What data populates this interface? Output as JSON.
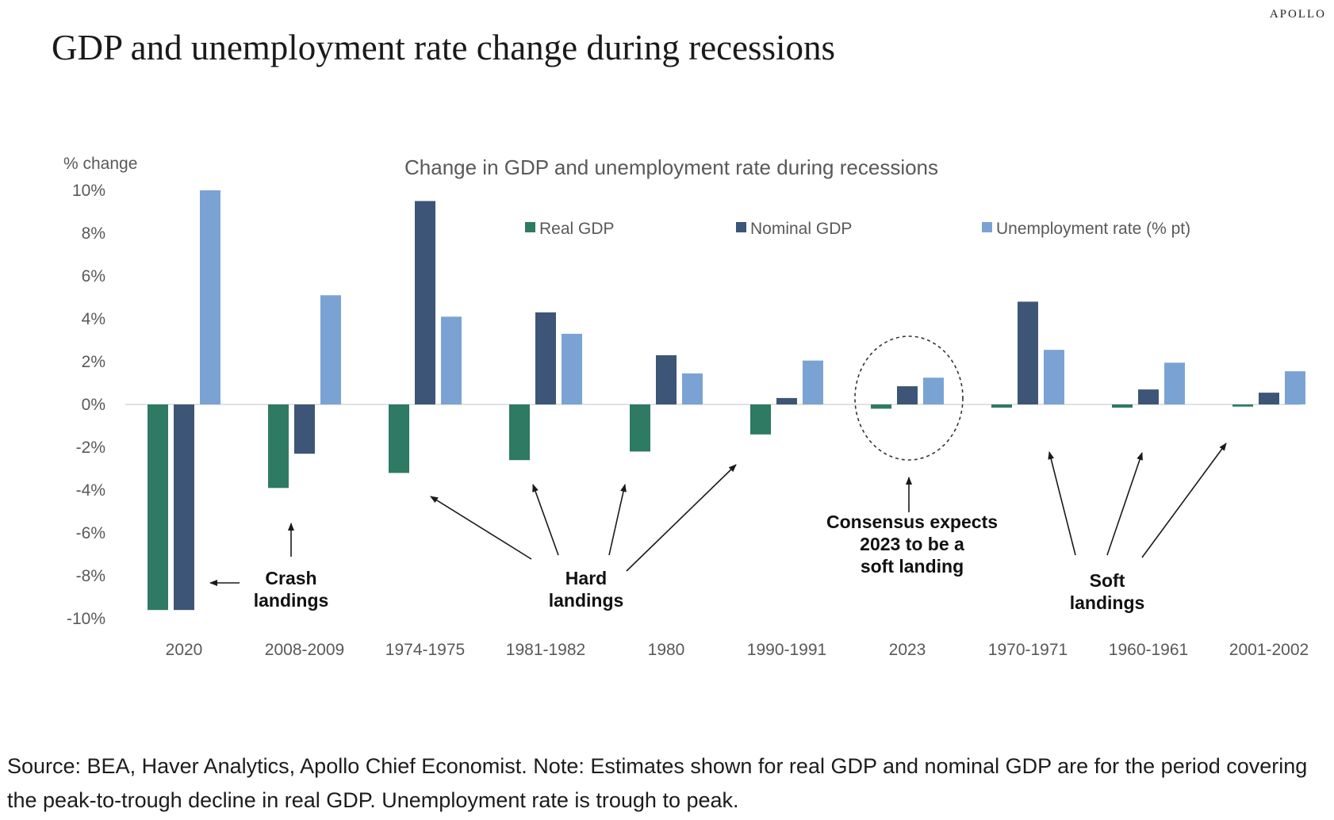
{
  "brand": "APOLLO",
  "page_title": "GDP and unemployment rate change during recessions",
  "source_note": "Source: BEA, Haver Analytics, Apollo Chief Economist. Note: Estimates shown for real GDP and nominal GDP are for the period covering the peak-to-trough decline in real GDP. Unemployment rate is trough to peak.",
  "chart_data": {
    "type": "bar",
    "title": "Change in GDP and unemployment rate during recessions",
    "ylabel": "% change",
    "ylim": [
      -10,
      10
    ],
    "yticks": [
      10,
      8,
      6,
      4,
      2,
      0,
      -2,
      -4,
      -6,
      -8,
      -10
    ],
    "ytick_labels": [
      "10%",
      "8%",
      "6%",
      "4%",
      "2%",
      "0%",
      "-2%",
      "-4%",
      "-6%",
      "-8%",
      "-10%"
    ],
    "grid": false,
    "legend_position": "top",
    "categories": [
      "2020",
      "2008-2009",
      "1974-1975",
      "1981-1982",
      "1980",
      "1990-1991",
      "2023",
      "1970-1971",
      "1960-1961",
      "2001-2002"
    ],
    "series": [
      {
        "name": "Real GDP",
        "color": "#2e7a63",
        "values": [
          -9.6,
          -3.9,
          -3.2,
          -2.6,
          -2.2,
          -1.4,
          -0.2,
          -0.15,
          -0.15,
          -0.1
        ]
      },
      {
        "name": "Nominal GDP",
        "color": "#3d5577",
        "values": [
          -9.6,
          -2.3,
          9.5,
          4.3,
          2.3,
          0.3,
          0.85,
          4.8,
          0.7,
          0.55
        ]
      },
      {
        "name": "Unemployment rate (% pt)",
        "color": "#7aa3d3",
        "values": [
          10.0,
          5.1,
          4.1,
          3.3,
          1.45,
          2.05,
          1.25,
          2.55,
          1.95,
          1.55
        ]
      }
    ],
    "annotations": [
      {
        "lines": [
          "Crash",
          "landings"
        ]
      },
      {
        "lines": [
          "Hard",
          "landings"
        ]
      },
      {
        "lines": [
          "Consensus expects",
          "2023 to be a",
          "soft landing"
        ]
      },
      {
        "lines": [
          "Soft",
          "landings"
        ]
      }
    ]
  }
}
